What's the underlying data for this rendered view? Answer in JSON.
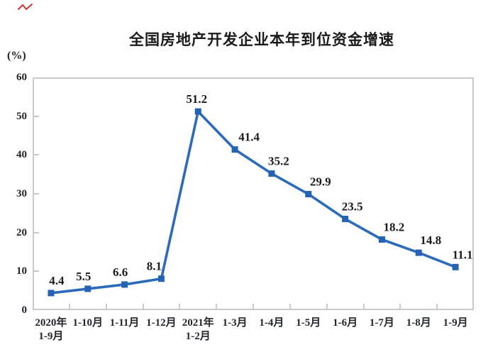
{
  "chart_data": {
    "type": "line",
    "title": "全国房地产开发企业本年到位资金增速",
    "unit_label": "(%)",
    "categories": [
      "2020年\n1-9月",
      "1-10月",
      "1-11月",
      "1-12月",
      "2021年\n1-2月",
      "1-3月",
      "1-4月",
      "1-5月",
      "1-6月",
      "1-7月",
      "1-8月",
      "1-9月"
    ],
    "values": [
      4.4,
      5.5,
      6.6,
      8.1,
      51.2,
      41.4,
      35.2,
      29.9,
      23.5,
      18.2,
      14.8,
      11.1
    ],
    "data_labels": [
      "4.4",
      "5.5",
      "6.6",
      "8.1",
      "51.2",
      "41.4",
      "35.2",
      "29.9",
      "23.5",
      "18.2",
      "14.8",
      "11.1"
    ],
    "yticks": [
      0,
      10,
      20,
      30,
      40,
      50,
      60
    ],
    "ylim": [
      0,
      60
    ],
    "grid": false,
    "legend": false,
    "marker": "square",
    "colors": {
      "line": "#2b6bba",
      "marker": "#2463b4",
      "axis_border": "#c6c9cd",
      "text": "#1c1c1c",
      "red_mark": "#d9342b"
    },
    "label_dx": [
      8,
      -6,
      -6,
      -10,
      -2,
      20,
      10,
      17,
      10,
      17,
      17,
      10
    ]
  }
}
